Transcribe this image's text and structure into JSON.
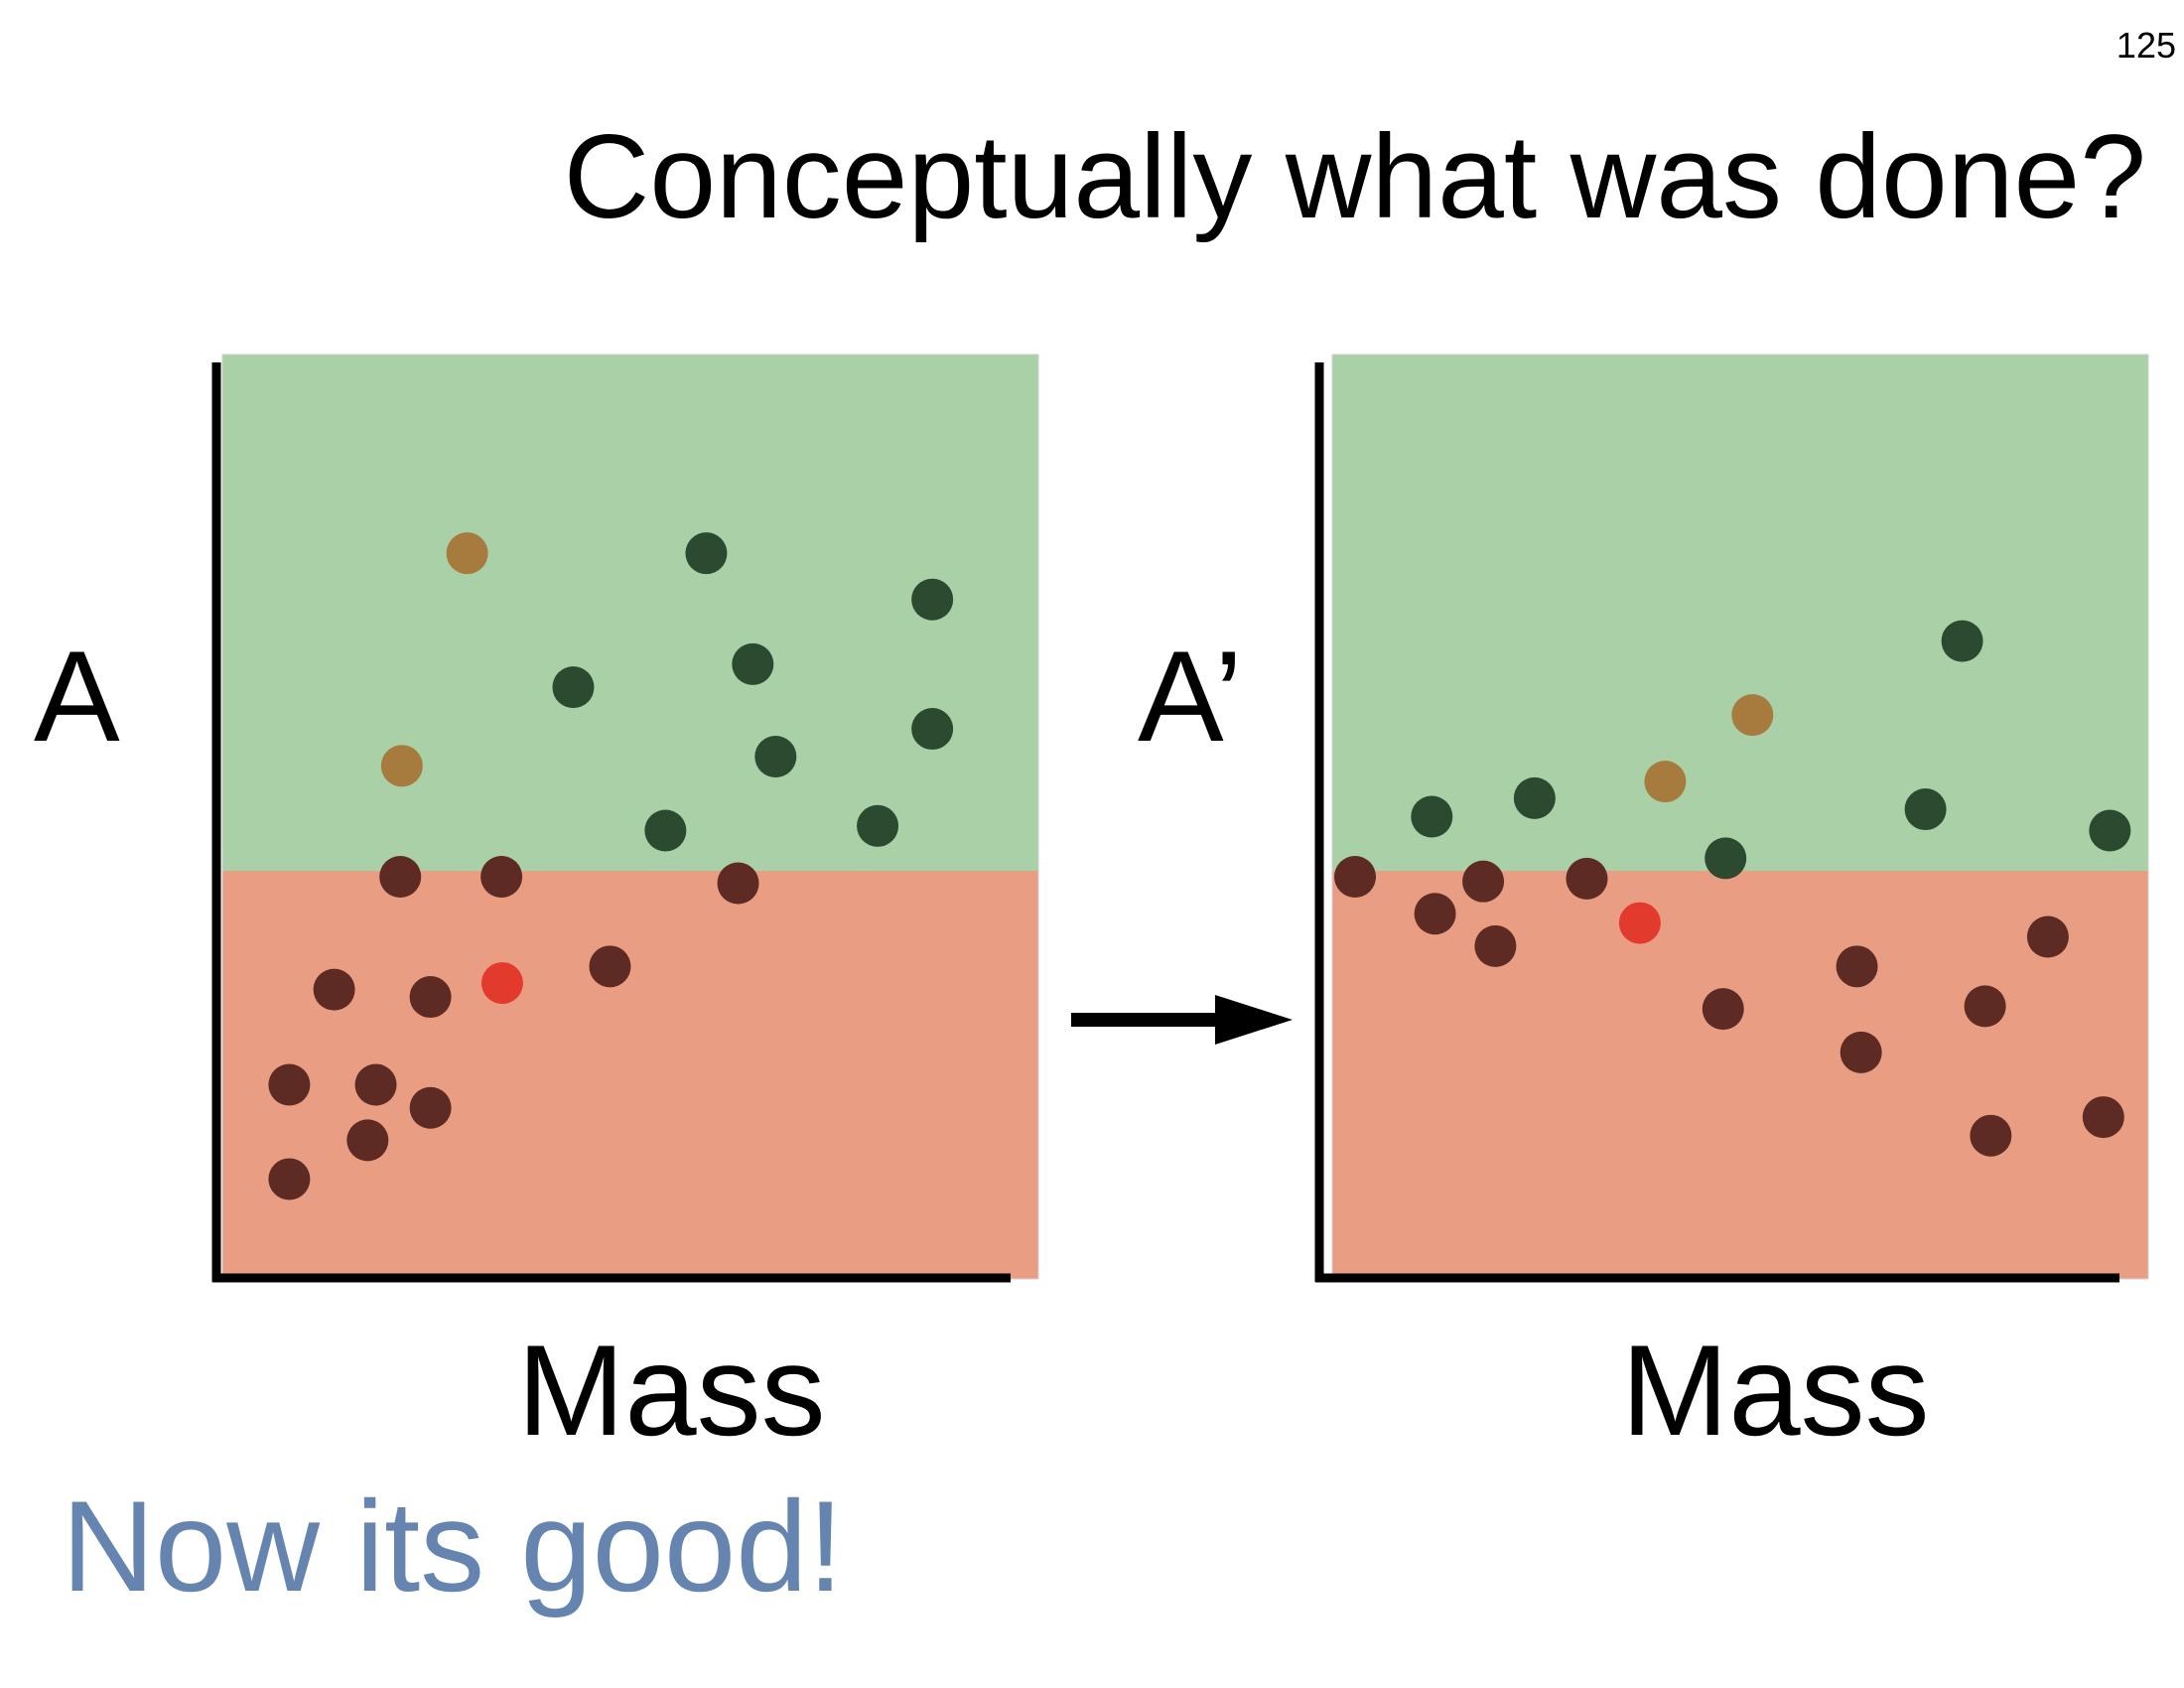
{
  "page_number": "125",
  "title": "Conceptually what was done?",
  "footer_note": "Now its good!",
  "colors": {
    "upper_region": "#a9d0a6",
    "lower_region": "#e99e84",
    "green_point": "#2b4a30",
    "brown_point": "#5d2b24",
    "tan_point": "#a77a3d",
    "red_point": "#e23a2c",
    "axis": "#000000",
    "footer_text": "#6585b0"
  },
  "panels": [
    {
      "y_label": "A",
      "x_label": "Mass",
      "points": [
        {
          "c": "tan",
          "x": 0.3,
          "y": 0.785
        },
        {
          "c": "green",
          "x": 0.593,
          "y": 0.785
        },
        {
          "c": "green",
          "x": 0.87,
          "y": 0.735
        },
        {
          "c": "green",
          "x": 0.43,
          "y": 0.64
        },
        {
          "c": "green",
          "x": 0.65,
          "y": 0.665
        },
        {
          "c": "green",
          "x": 0.87,
          "y": 0.595
        },
        {
          "c": "tan",
          "x": 0.22,
          "y": 0.555
        },
        {
          "c": "green",
          "x": 0.678,
          "y": 0.565
        },
        {
          "c": "green",
          "x": 0.543,
          "y": 0.485
        },
        {
          "c": "green",
          "x": 0.803,
          "y": 0.49
        },
        {
          "c": "brown",
          "x": 0.218,
          "y": 0.435
        },
        {
          "c": "brown",
          "x": 0.342,
          "y": 0.435
        },
        {
          "c": "brown",
          "x": 0.632,
          "y": 0.428
        },
        {
          "c": "red",
          "x": 0.343,
          "y": 0.32
        },
        {
          "c": "brown",
          "x": 0.475,
          "y": 0.338
        },
        {
          "c": "brown",
          "x": 0.137,
          "y": 0.313
        },
        {
          "c": "brown",
          "x": 0.255,
          "y": 0.305
        },
        {
          "c": "brown",
          "x": 0.082,
          "y": 0.21
        },
        {
          "c": "brown",
          "x": 0.188,
          "y": 0.21
        },
        {
          "c": "brown",
          "x": 0.255,
          "y": 0.185
        },
        {
          "c": "brown",
          "x": 0.178,
          "y": 0.15
        },
        {
          "c": "brown",
          "x": 0.082,
          "y": 0.108
        }
      ]
    },
    {
      "y_label": "A’",
      "x_label": "Mass",
      "points": [
        {
          "c": "green",
          "x": 0.772,
          "y": 0.69
        },
        {
          "c": "tan",
          "x": 0.515,
          "y": 0.61
        },
        {
          "c": "tan",
          "x": 0.408,
          "y": 0.538
        },
        {
          "c": "green",
          "x": 0.248,
          "y": 0.52
        },
        {
          "c": "green",
          "x": 0.122,
          "y": 0.5
        },
        {
          "c": "green",
          "x": 0.727,
          "y": 0.508
        },
        {
          "c": "green",
          "x": 0.953,
          "y": 0.485
        },
        {
          "c": "green",
          "x": 0.482,
          "y": 0.455
        },
        {
          "c": "brown",
          "x": 0.028,
          "y": 0.435
        },
        {
          "c": "brown",
          "x": 0.185,
          "y": 0.43
        },
        {
          "c": "brown",
          "x": 0.312,
          "y": 0.433
        },
        {
          "c": "brown",
          "x": 0.126,
          "y": 0.395
        },
        {
          "c": "red",
          "x": 0.377,
          "y": 0.385
        },
        {
          "c": "brown",
          "x": 0.2,
          "y": 0.36
        },
        {
          "c": "brown",
          "x": 0.877,
          "y": 0.37
        },
        {
          "c": "brown",
          "x": 0.643,
          "y": 0.338
        },
        {
          "c": "brown",
          "x": 0.479,
          "y": 0.292
        },
        {
          "c": "brown",
          "x": 0.8,
          "y": 0.295
        },
        {
          "c": "brown",
          "x": 0.648,
          "y": 0.245
        },
        {
          "c": "brown",
          "x": 0.945,
          "y": 0.175
        },
        {
          "c": "brown",
          "x": 0.807,
          "y": 0.155
        }
      ]
    }
  ],
  "transition_arrow": "right-arrow"
}
